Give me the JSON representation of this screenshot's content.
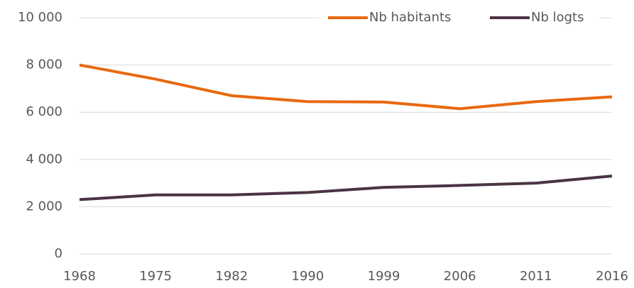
{
  "chart_data": {
    "type": "line",
    "categories": [
      "1968",
      "1975",
      "1982",
      "1990",
      "1999",
      "2006",
      "2011",
      "2016"
    ],
    "series": [
      {
        "name": "Nb habitants",
        "color": "#e8690f",
        "values": [
          8000,
          7400,
          6700,
          6450,
          6430,
          6150,
          6450,
          6650
        ]
      },
      {
        "name": "Nb logts",
        "color": "#4a3443",
        "values": [
          2300,
          2500,
          2500,
          2600,
          2820,
          2900,
          3000,
          3300
        ]
      }
    ],
    "ylim": [
      0,
      10000
    ],
    "yticks": [
      0,
      {
        "value": 2000,
        "label": "2 000"
      },
      {
        "value": 4000,
        "label": "4 000"
      },
      {
        "value": 6000,
        "label": "6 000"
      },
      {
        "value": 8000,
        "label": "8 000"
      },
      {
        "value": 10000,
        "label": "10 000"
      }
    ],
    "grid": true,
    "legend": "top-right"
  }
}
